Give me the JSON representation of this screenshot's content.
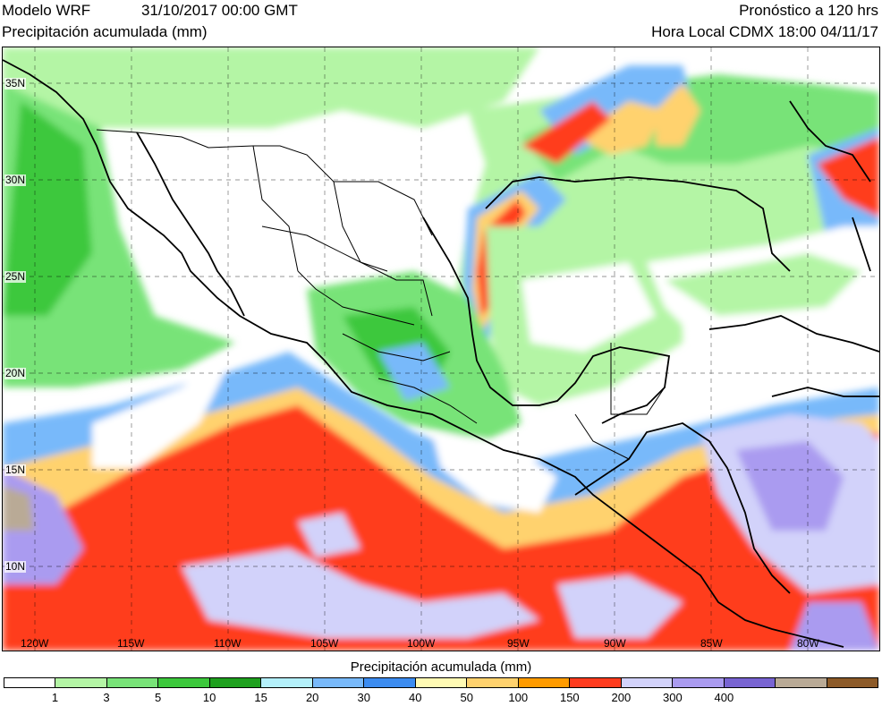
{
  "header": {
    "model": "Modelo WRF",
    "init": "31/10/2017 00:00 GMT",
    "variable": "Precipitación acumulada (mm)",
    "forecast": "Pronóstico a 120 hrs",
    "local_time": "Hora Local CDMX 18:00 04/11/17"
  },
  "map": {
    "region": "Mexico and Central America",
    "lat_labels": [
      "35N",
      "30N",
      "25N",
      "20N",
      "15N",
      "10N"
    ],
    "lon_labels": [
      "120W",
      "115W",
      "110W",
      "105W",
      "100W",
      "95W",
      "90W",
      "85W",
      "80W"
    ],
    "grid": "dashed"
  },
  "colorbar": {
    "title": "Precipitación acumulada (mm)",
    "ticks": [
      "1",
      "3",
      "5",
      "10",
      "15",
      "20",
      "30",
      "40",
      "50",
      "100",
      "150",
      "200",
      "300",
      "400"
    ],
    "colors": [
      "#ffffff",
      "#b4f5a5",
      "#78e378",
      "#3cc83c",
      "#1ea01e",
      "#b4f0fa",
      "#78b9fa",
      "#3c8cf0",
      "#fffab4",
      "#ffd26e",
      "#ff9b00",
      "#ff3c1e",
      "#d2d2fa",
      "#aa9bf0",
      "#7864d2",
      "#b9aa96",
      "#8c5a28"
    ]
  }
}
